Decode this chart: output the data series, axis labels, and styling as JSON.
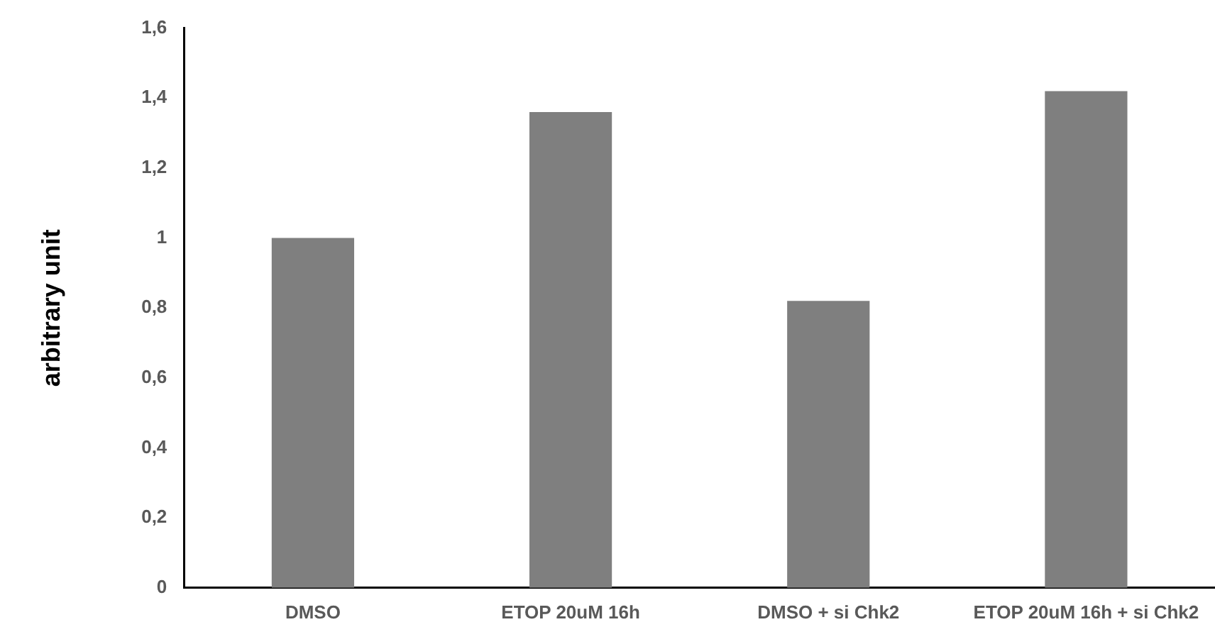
{
  "chart_data": {
    "type": "bar",
    "ylabel": "arbitrary unit",
    "categories": [
      "DMSO",
      "ETOP 20uM 16h",
      "DMSO + si Chk2",
      "ETOP 20uM 16h + si Chk2"
    ],
    "values": [
      1.0,
      1.36,
      0.82,
      1.42
    ],
    "color": "#7f7f7f",
    "ylim": [
      0,
      1.6
    ],
    "yticks": [
      {
        "value": 0,
        "label": "0"
      },
      {
        "value": 0.2,
        "label": "0,2"
      },
      {
        "value": 0.4,
        "label": "0,4"
      },
      {
        "value": 0.6,
        "label": "0,6"
      },
      {
        "value": 0.8,
        "label": "0,8"
      },
      {
        "value": 1,
        "label": "1"
      },
      {
        "value": 1.2,
        "label": "1,2"
      },
      {
        "value": 1.4,
        "label": "1,4"
      },
      {
        "value": 1.6,
        "label": "1,6"
      }
    ],
    "grid": false,
    "legend": false
  }
}
